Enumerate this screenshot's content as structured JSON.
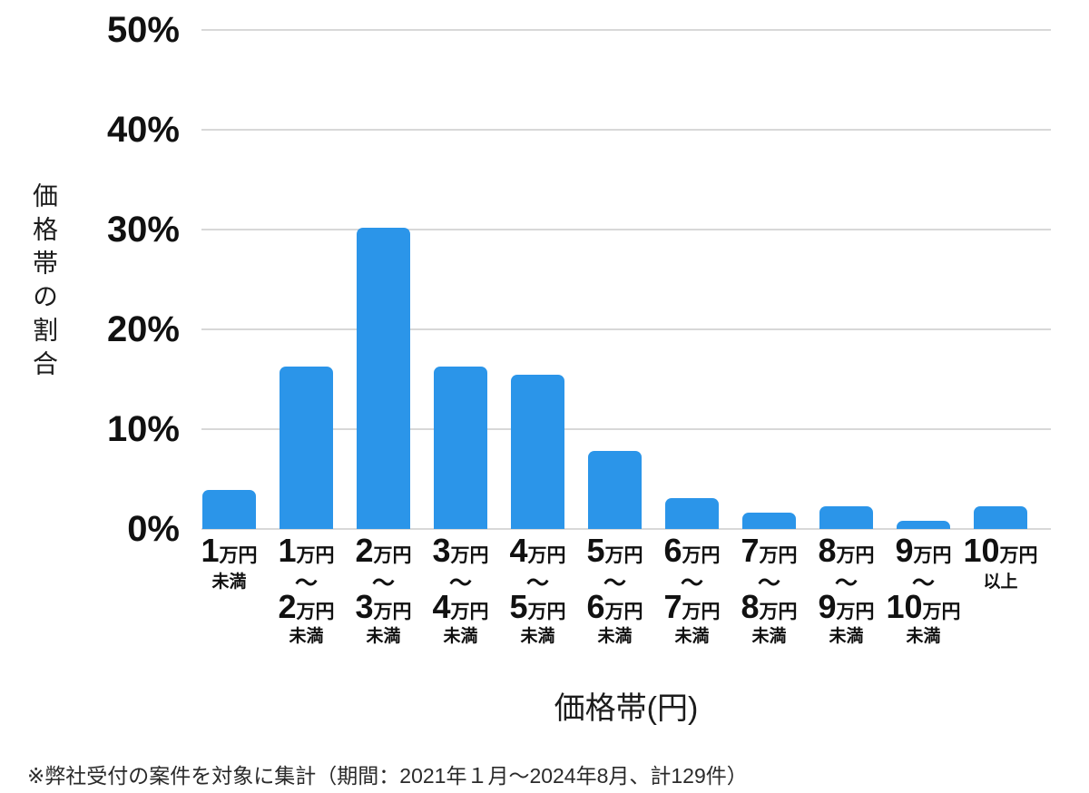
{
  "chart_data": {
    "type": "bar",
    "title": "",
    "xlabel": "価格帯(円)",
    "ylabel": "価格帯の割合",
    "ylim": [
      0,
      50
    ],
    "grid": "horizontal",
    "legend": "none",
    "bar_color": "#2B95E9",
    "gridline_color": "#d8d8d8",
    "yticks": [
      {
        "label": "50%",
        "value": 50
      },
      {
        "label": "40%",
        "value": 40
      },
      {
        "label": "30%",
        "value": 30
      },
      {
        "label": "20%",
        "value": 20
      },
      {
        "label": "10%",
        "value": 10
      },
      {
        "label": "0%",
        "value": 0
      }
    ],
    "categories": [
      "1万円未満",
      "1万円〜2万円未満",
      "2万円〜3万円未満",
      "3万円〜4万円未満",
      "4万円〜5万円未満",
      "5万円〜6万円未満",
      "6万円〜7万円未満",
      "7万円〜8万円未満",
      "8万円〜9万円未満",
      "9万円〜10万円未満",
      "10万円以上"
    ],
    "values": [
      3.9,
      16.3,
      30.2,
      16.3,
      15.5,
      7.8,
      3.1,
      1.6,
      2.3,
      0.8,
      2.3
    ],
    "category_lines": [
      {
        "top_num": "1",
        "top_unit": "万円",
        "tilde": "",
        "bottom_num": "",
        "bottom_unit": "",
        "suffix": "未満"
      },
      {
        "top_num": "1",
        "top_unit": "万円",
        "tilde": "〜",
        "bottom_num": "2",
        "bottom_unit": "万円",
        "suffix": "未満"
      },
      {
        "top_num": "2",
        "top_unit": "万円",
        "tilde": "〜",
        "bottom_num": "3",
        "bottom_unit": "万円",
        "suffix": "未満"
      },
      {
        "top_num": "3",
        "top_unit": "万円",
        "tilde": "〜",
        "bottom_num": "4",
        "bottom_unit": "万円",
        "suffix": "未満"
      },
      {
        "top_num": "4",
        "top_unit": "万円",
        "tilde": "〜",
        "bottom_num": "5",
        "bottom_unit": "万円",
        "suffix": "未満"
      },
      {
        "top_num": "5",
        "top_unit": "万円",
        "tilde": "〜",
        "bottom_num": "6",
        "bottom_unit": "万円",
        "suffix": "未満"
      },
      {
        "top_num": "6",
        "top_unit": "万円",
        "tilde": "〜",
        "bottom_num": "7",
        "bottom_unit": "万円",
        "suffix": "未満"
      },
      {
        "top_num": "7",
        "top_unit": "万円",
        "tilde": "〜",
        "bottom_num": "8",
        "bottom_unit": "万円",
        "suffix": "未満"
      },
      {
        "top_num": "8",
        "top_unit": "万円",
        "tilde": "〜",
        "bottom_num": "9",
        "bottom_unit": "万円",
        "suffix": "未満"
      },
      {
        "top_num": "9",
        "top_unit": "万円",
        "tilde": "〜",
        "bottom_num": "10",
        "bottom_unit": "万円",
        "suffix": "未満"
      },
      {
        "top_num": "10",
        "top_unit": "万円",
        "tilde": "",
        "bottom_num": "",
        "bottom_unit": "",
        "suffix": "以上"
      }
    ],
    "note": "※弊社受付の案件を対象に集計（期間：2021年１月〜2024年8月、計129件）"
  }
}
